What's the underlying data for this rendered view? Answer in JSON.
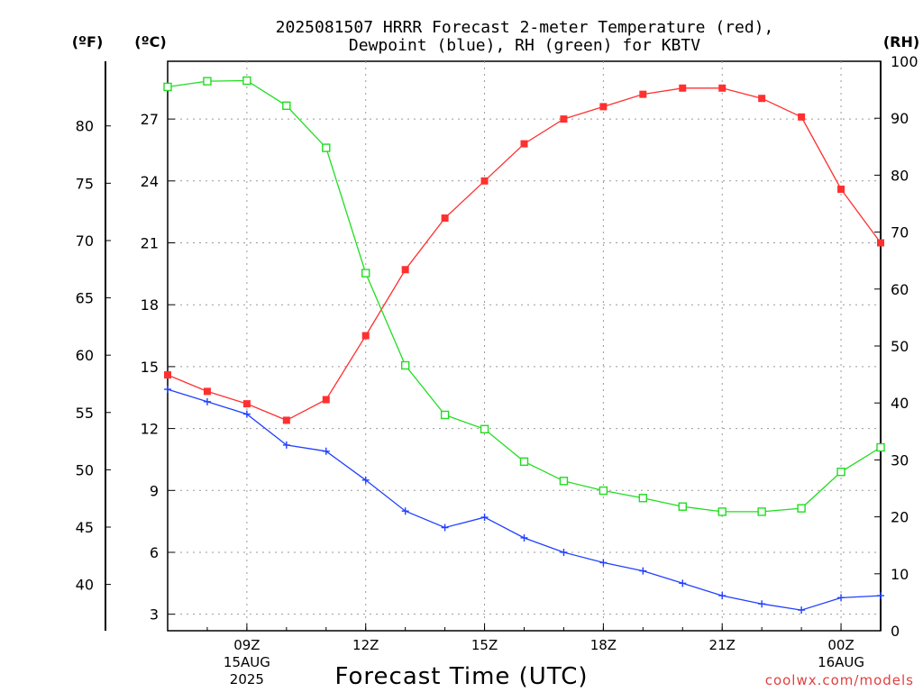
{
  "chart_data": {
    "type": "line",
    "title_line1": "2025081507 HRRR Forecast 2-meter Temperature (red),",
    "title_line2": "Dewpoint (blue), RH (green) for KBTV",
    "unit_labels": {
      "fahrenheit": "(ºF)",
      "celsius": "(ºC)",
      "rh": "(RH)"
    },
    "xlabel": "Forecast Time (UTC)",
    "credit": "coolwx.com/models",
    "x_hours": [
      7,
      8,
      9,
      10,
      11,
      12,
      13,
      14,
      15,
      16,
      17,
      18,
      19,
      20,
      21,
      22,
      23,
      24,
      25
    ],
    "xlim": [
      7,
      25
    ],
    "x_ticks": [
      {
        "hour": 9,
        "lines": [
          "09Z",
          "15AUG",
          "2025"
        ]
      },
      {
        "hour": 12,
        "lines": [
          "12Z"
        ]
      },
      {
        "hour": 15,
        "lines": [
          "15Z"
        ]
      },
      {
        "hour": 18,
        "lines": [
          "18Z"
        ]
      },
      {
        "hour": 21,
        "lines": [
          "21Z"
        ]
      },
      {
        "hour": 24,
        "lines": [
          "00Z",
          "16AUG"
        ]
      }
    ],
    "celsius_axis": {
      "ylim": [
        2.2,
        29.8
      ],
      "ticks": [
        3,
        6,
        9,
        12,
        15,
        18,
        21,
        24,
        27
      ]
    },
    "fahrenheit_axis": {
      "ticks": [
        40,
        45,
        50,
        55,
        60,
        65,
        70,
        75,
        80
      ]
    },
    "rh_axis": {
      "ylim": [
        0,
        100
      ],
      "ticks": [
        0,
        10,
        20,
        30,
        40,
        50,
        60,
        70,
        80,
        90,
        100
      ]
    },
    "grid": true,
    "series": [
      {
        "name": "Temperature",
        "axis": "celsius",
        "color": "#ff3030",
        "marker": "filled-square",
        "values": [
          14.6,
          13.8,
          13.2,
          12.4,
          13.4,
          16.5,
          19.7,
          22.2,
          24.0,
          25.8,
          27.0,
          27.6,
          28.2,
          28.5,
          28.5,
          28.0,
          27.1,
          23.6,
          21.0
        ]
      },
      {
        "name": "Dewpoint",
        "axis": "celsius",
        "color": "#2040ff",
        "marker": "plus",
        "values": [
          13.9,
          13.3,
          12.7,
          11.2,
          10.9,
          9.5,
          8.0,
          7.2,
          7.7,
          6.7,
          6.0,
          5.5,
          5.1,
          4.5,
          3.9,
          3.5,
          3.2,
          3.8,
          3.9
        ]
      },
      {
        "name": "RH",
        "axis": "rh",
        "color": "#20dd20",
        "marker": "open-square",
        "values": [
          95.5,
          96.5,
          96.6,
          92.2,
          84.8,
          62.8,
          46.6,
          37.9,
          35.4,
          29.7,
          26.3,
          24.6,
          23.3,
          21.8,
          20.9,
          20.9,
          21.5,
          27.9,
          32.2
        ]
      }
    ]
  }
}
